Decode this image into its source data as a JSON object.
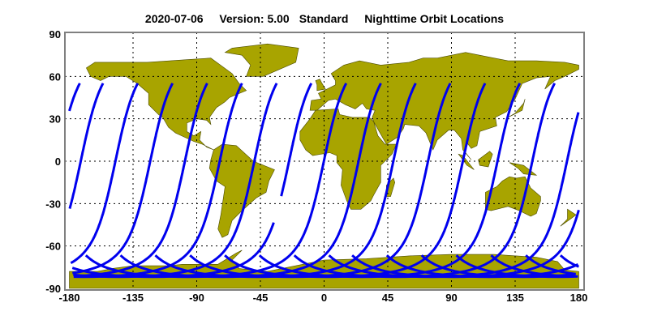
{
  "title": {
    "date": "2020-07-06",
    "version": "Version: 5.00",
    "mode": "Standard",
    "product": "Nighttime Orbit Locations"
  },
  "map": {
    "projection": "equirectangular",
    "lon_range": [
      -180,
      180
    ],
    "lat_range": [
      -90,
      90
    ],
    "x_ticks": [
      "-180",
      "-135",
      "-90",
      "-45",
      "0",
      "45",
      "90",
      "135",
      "180"
    ],
    "y_ticks": [
      "90",
      "60",
      "30",
      "0",
      "-30",
      "-60",
      "-90"
    ],
    "grid": "dotted",
    "colors": {
      "land": "#a8a400",
      "coast": "#4a4a00",
      "orbit": "#0000ee",
      "frame": "#808080"
    },
    "orbit_tracks": {
      "count": 15,
      "pass": "descending (nighttime)",
      "northern_end_lat": 55,
      "northern_end_lons": [
        -156.2,
        -131.7,
        -107.1,
        -82.6,
        -58.0,
        -33.5,
        -9.0,
        15.6,
        40.1,
        64.7,
        89.2,
        113.8,
        138.3,
        162.9,
        187.4
      ],
      "data_gap": {
        "track": 6,
        "lat_from": -25,
        "lat_to": -43
      }
    }
  }
}
